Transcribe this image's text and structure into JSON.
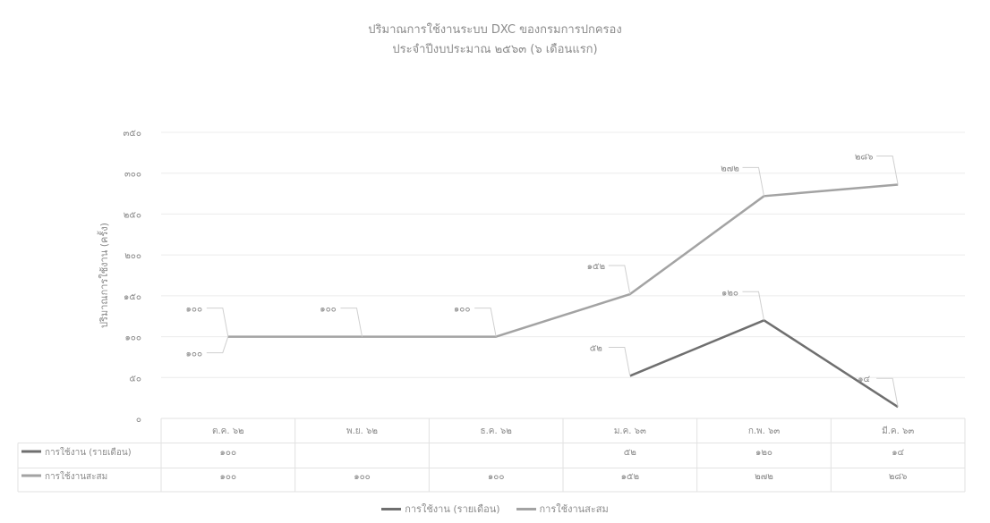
{
  "title": "ปริมาณการใช้งานระบบ DXC ของกรมการปกครอง",
  "subtitle": "ประจำปีงบประมาณ ๒๕๖๓ (๖ เดือนแรก)",
  "colors": {
    "monthly": "#6f6f6f",
    "cumulative": "#a3a3a3",
    "grid": "#ececec",
    "table_border": "#e2e2e2",
    "text": "#8a8a8a"
  },
  "chart_data": {
    "type": "line",
    "title": "ปริมาณการใช้งานระบบ DXC ของกรมการปกครอง",
    "subtitle": "ประจำปีงบประมาณ ๒๕๖๓ (๖ เดือนแรก)",
    "ylabel": "ปริมาณการใช้งาน (ครั้ง)",
    "xlabel": "",
    "ylim": [
      0,
      350
    ],
    "y_ticks": [
      0,
      50,
      100,
      150,
      200,
      250,
      300,
      350
    ],
    "y_tick_labels": [
      "๐",
      "๕๐",
      "๑๐๐",
      "๑๕๐",
      "๒๐๐",
      "๒๕๐",
      "๓๐๐",
      "๓๕๐"
    ],
    "grid": true,
    "legend_position": "bottom",
    "data_table": true,
    "categories": [
      "ต.ค. ๖๒",
      "พ.ย. ๖๒",
      "ธ.ค. ๖๒",
      "ม.ค. ๖๓",
      "ก.พ. ๖๓",
      "มี.ค. ๖๓"
    ],
    "series": [
      {
        "name": "การใช้งาน (รายเดือน)",
        "key": "monthly",
        "values": [
          100,
          null,
          null,
          52,
          120,
          14
        ],
        "value_labels": [
          "๑๐๐",
          "",
          "",
          "๕๒",
          "๑๒๐",
          "๑๔"
        ]
      },
      {
        "name": "การใช้งานสะสม",
        "key": "cumulative",
        "values": [
          100,
          100,
          100,
          152,
          272,
          286
        ],
        "value_labels": [
          "๑๐๐",
          "๑๐๐",
          "๑๐๐",
          "๑๕๒",
          "๒๗๒",
          "๒๘๖"
        ]
      }
    ]
  }
}
